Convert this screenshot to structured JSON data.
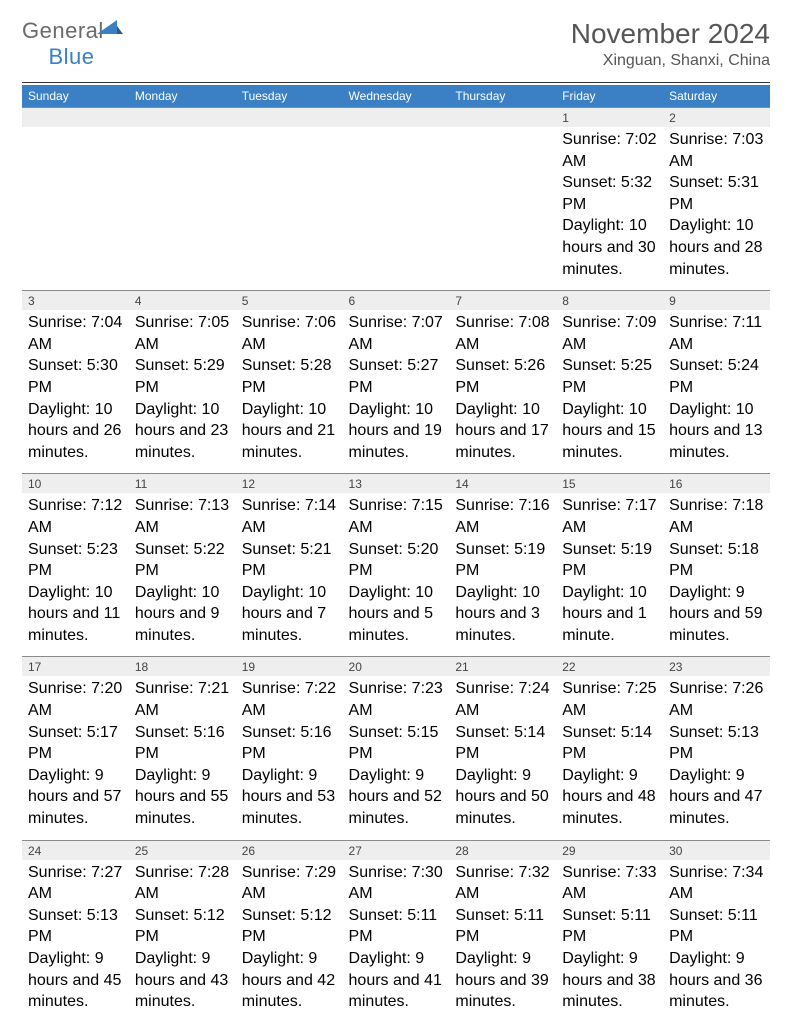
{
  "brand": {
    "part1": "General",
    "part2": "Blue"
  },
  "title": "November 2024",
  "location": "Xinguan, Shanxi, China",
  "colors": {
    "header_bg": "#3b7fc4",
    "header_text": "#ffffff",
    "daynum_bg": "#eeeeee",
    "daynum_border": "#8a8a8a",
    "body_text": "#333333",
    "title_text": "#555555",
    "background": "#ffffff"
  },
  "typography": {
    "title_fontsize": 28,
    "subtitle_fontsize": 16,
    "dayhead_fontsize": 12,
    "daynum_fontsize": 12,
    "cell_fontsize": 10.5
  },
  "dayNames": [
    "Sunday",
    "Monday",
    "Tuesday",
    "Wednesday",
    "Thursday",
    "Friday",
    "Saturday"
  ],
  "weeks": [
    [
      null,
      null,
      null,
      null,
      null,
      {
        "n": "1",
        "sunrise": "7:02 AM",
        "sunset": "5:32 PM",
        "daylight": "10 hours and 30 minutes."
      },
      {
        "n": "2",
        "sunrise": "7:03 AM",
        "sunset": "5:31 PM",
        "daylight": "10 hours and 28 minutes."
      }
    ],
    [
      {
        "n": "3",
        "sunrise": "7:04 AM",
        "sunset": "5:30 PM",
        "daylight": "10 hours and 26 minutes."
      },
      {
        "n": "4",
        "sunrise": "7:05 AM",
        "sunset": "5:29 PM",
        "daylight": "10 hours and 23 minutes."
      },
      {
        "n": "5",
        "sunrise": "7:06 AM",
        "sunset": "5:28 PM",
        "daylight": "10 hours and 21 minutes."
      },
      {
        "n": "6",
        "sunrise": "7:07 AM",
        "sunset": "5:27 PM",
        "daylight": "10 hours and 19 minutes."
      },
      {
        "n": "7",
        "sunrise": "7:08 AM",
        "sunset": "5:26 PM",
        "daylight": "10 hours and 17 minutes."
      },
      {
        "n": "8",
        "sunrise": "7:09 AM",
        "sunset": "5:25 PM",
        "daylight": "10 hours and 15 minutes."
      },
      {
        "n": "9",
        "sunrise": "7:11 AM",
        "sunset": "5:24 PM",
        "daylight": "10 hours and 13 minutes."
      }
    ],
    [
      {
        "n": "10",
        "sunrise": "7:12 AM",
        "sunset": "5:23 PM",
        "daylight": "10 hours and 11 minutes."
      },
      {
        "n": "11",
        "sunrise": "7:13 AM",
        "sunset": "5:22 PM",
        "daylight": "10 hours and 9 minutes."
      },
      {
        "n": "12",
        "sunrise": "7:14 AM",
        "sunset": "5:21 PM",
        "daylight": "10 hours and 7 minutes."
      },
      {
        "n": "13",
        "sunrise": "7:15 AM",
        "sunset": "5:20 PM",
        "daylight": "10 hours and 5 minutes."
      },
      {
        "n": "14",
        "sunrise": "7:16 AM",
        "sunset": "5:19 PM",
        "daylight": "10 hours and 3 minutes."
      },
      {
        "n": "15",
        "sunrise": "7:17 AM",
        "sunset": "5:19 PM",
        "daylight": "10 hours and 1 minute."
      },
      {
        "n": "16",
        "sunrise": "7:18 AM",
        "sunset": "5:18 PM",
        "daylight": "9 hours and 59 minutes."
      }
    ],
    [
      {
        "n": "17",
        "sunrise": "7:20 AM",
        "sunset": "5:17 PM",
        "daylight": "9 hours and 57 minutes."
      },
      {
        "n": "18",
        "sunrise": "7:21 AM",
        "sunset": "5:16 PM",
        "daylight": "9 hours and 55 minutes."
      },
      {
        "n": "19",
        "sunrise": "7:22 AM",
        "sunset": "5:16 PM",
        "daylight": "9 hours and 53 minutes."
      },
      {
        "n": "20",
        "sunrise": "7:23 AM",
        "sunset": "5:15 PM",
        "daylight": "9 hours and 52 minutes."
      },
      {
        "n": "21",
        "sunrise": "7:24 AM",
        "sunset": "5:14 PM",
        "daylight": "9 hours and 50 minutes."
      },
      {
        "n": "22",
        "sunrise": "7:25 AM",
        "sunset": "5:14 PM",
        "daylight": "9 hours and 48 minutes."
      },
      {
        "n": "23",
        "sunrise": "7:26 AM",
        "sunset": "5:13 PM",
        "daylight": "9 hours and 47 minutes."
      }
    ],
    [
      {
        "n": "24",
        "sunrise": "7:27 AM",
        "sunset": "5:13 PM",
        "daylight": "9 hours and 45 minutes."
      },
      {
        "n": "25",
        "sunrise": "7:28 AM",
        "sunset": "5:12 PM",
        "daylight": "9 hours and 43 minutes."
      },
      {
        "n": "26",
        "sunrise": "7:29 AM",
        "sunset": "5:12 PM",
        "daylight": "9 hours and 42 minutes."
      },
      {
        "n": "27",
        "sunrise": "7:30 AM",
        "sunset": "5:11 PM",
        "daylight": "9 hours and 41 minutes."
      },
      {
        "n": "28",
        "sunrise": "7:32 AM",
        "sunset": "5:11 PM",
        "daylight": "9 hours and 39 minutes."
      },
      {
        "n": "29",
        "sunrise": "7:33 AM",
        "sunset": "5:11 PM",
        "daylight": "9 hours and 38 minutes."
      },
      {
        "n": "30",
        "sunrise": "7:34 AM",
        "sunset": "5:11 PM",
        "daylight": "9 hours and 36 minutes."
      }
    ]
  ],
  "labels": {
    "sunrise": "Sunrise: ",
    "sunset": "Sunset: ",
    "daylight": "Daylight: "
  }
}
